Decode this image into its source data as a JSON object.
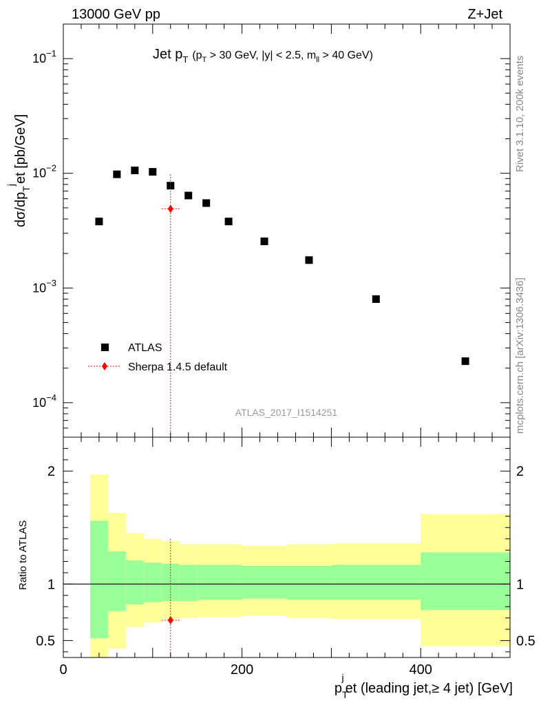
{
  "header": {
    "left": "13000 GeV pp",
    "right": "Z+Jet"
  },
  "side_labels": {
    "rivet": "Rivet 3.1.10,  200k events",
    "mcplots": "mcplots.cern.ch [arXiv:1306.3436]"
  },
  "chart_data": [
    {
      "type": "scatter",
      "panel": "main",
      "title": {
        "prefix": "Jet p",
        "sub": "T",
        "cuts_a": "(p",
        "cuts_a_sub": "T",
        "cuts_b": " > 30 GeV, |y| < 2.5, m",
        "cuts_b_sub": "ll",
        "cuts_c": " > 40 GeV)"
      },
      "watermark": "ATLAS_2017_I1514251",
      "ylabel": {
        "a": "dσ/dp",
        "a_sub": "T",
        "b_sup": "j",
        "c": "et [pb/GeV]"
      },
      "yscale": "log",
      "ylim": [
        5e-05,
        0.2
      ],
      "xlim": [
        0,
        500
      ],
      "yticks": [
        {
          "value": 0.1,
          "base": "10",
          "exp": "−1"
        },
        {
          "value": 0.01,
          "base": "10",
          "exp": "−2"
        },
        {
          "value": 0.001,
          "base": "10",
          "exp": "−3"
        },
        {
          "value": 0.0001,
          "base": "10",
          "exp": "−4"
        }
      ],
      "legend": {
        "position": "lower-left",
        "entries": [
          "ATLAS",
          "Sherpa 1.4.5 default"
        ]
      },
      "series": [
        {
          "name": "ATLAS",
          "color": "#000000",
          "marker": "square",
          "x": [
            40,
            60,
            80,
            100,
            120,
            140,
            160,
            185,
            225,
            275,
            350,
            450
          ],
          "y": [
            0.0038,
            0.0098,
            0.0106,
            0.0103,
            0.0078,
            0.0064,
            0.0055,
            0.0038,
            0.00255,
            0.00175,
            0.0008,
            0.00023
          ]
        },
        {
          "name": "Sherpa 1.4.5 default",
          "color": "#ff0000",
          "marker": "diamond",
          "x": [
            120
          ],
          "y": [
            0.0049
          ],
          "xerr": [
            [
              110,
              130
            ]
          ],
          "yerr": [
            [
              3e-05,
              0.0098
            ]
          ]
        }
      ]
    },
    {
      "type": "area",
      "panel": "ratio",
      "ylabel": "Ratio to ATLAS",
      "xlabel": {
        "a": "p",
        "a_sub": "T",
        "a_sup": "j",
        "b": "et (leading jet,≥ 4 jet) [GeV]"
      },
      "ylim": [
        0.35,
        2.3
      ],
      "xlim": [
        0,
        500
      ],
      "xticks": [
        0,
        200,
        400
      ],
      "yticks": [
        0.5,
        1,
        2
      ],
      "reference_line": 1,
      "bands": {
        "edges": [
          30,
          50,
          70,
          90,
          110,
          130,
          150,
          200,
          250,
          300,
          400,
          500
        ],
        "stat_color": "#99ff99",
        "total_color": "#ffff99",
        "inner_lo": [
          0.52,
          0.76,
          0.82,
          0.84,
          0.85,
          0.85,
          0.86,
          0.87,
          0.86,
          0.86,
          0.77
        ],
        "inner_hi": [
          1.56,
          1.29,
          1.21,
          1.19,
          1.18,
          1.17,
          1.17,
          1.16,
          1.16,
          1.17,
          1.28
        ],
        "outer_lo": [
          0.3,
          0.43,
          0.62,
          0.66,
          0.69,
          0.7,
          0.71,
          0.72,
          0.7,
          0.69,
          0.45
        ],
        "outer_hi": [
          1.97,
          1.63,
          1.45,
          1.4,
          1.38,
          1.35,
          1.35,
          1.34,
          1.35,
          1.36,
          1.62
        ]
      },
      "series": [
        {
          "name": "Sherpa 1.4.5 default",
          "color": "#ff0000",
          "x": [
            120
          ],
          "y": [
            0.68
          ],
          "xerr": [
            [
              110,
              130
            ]
          ],
          "yerr": [
            [
              0.3,
              1.4
            ]
          ]
        }
      ]
    }
  ]
}
